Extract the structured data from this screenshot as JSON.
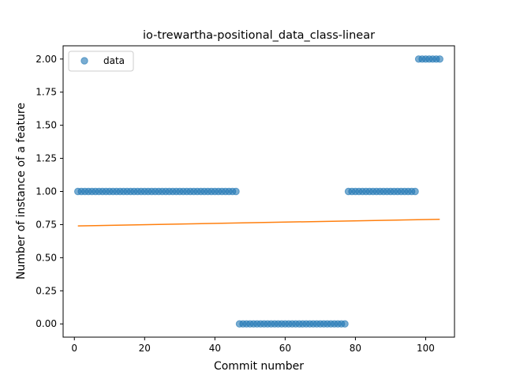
{
  "chart_data": {
    "type": "scatter",
    "title": "io-trewartha-positional_data_class-linear",
    "xlabel": "Commit number",
    "ylabel": "Number of instance of a feature",
    "xlim": [
      -3.2,
      108.2
    ],
    "ylim": [
      -0.1,
      2.1
    ],
    "xticks": [
      0,
      20,
      40,
      60,
      80,
      100
    ],
    "yticks": [
      0.0,
      0.25,
      0.5,
      0.75,
      1.0,
      1.25,
      1.5,
      1.75,
      2.0
    ],
    "ytick_labels": [
      "0.00",
      "0.25",
      "0.50",
      "0.75",
      "1.00",
      "1.25",
      "1.50",
      "1.75",
      "2.00"
    ],
    "legend": {
      "position": "upper-left",
      "entries": [
        "data"
      ]
    },
    "grid": false,
    "series": [
      {
        "name": "data",
        "kind": "scatter",
        "color": "#1f77b4",
        "alpha": 0.6,
        "points": [
          {
            "x_from": 1,
            "x_to": 46,
            "y": 1
          },
          {
            "x_from": 47,
            "x_to": 77,
            "y": 0
          },
          {
            "x_from": 78,
            "x_to": 97,
            "y": 1
          },
          {
            "x_from": 98,
            "x_to": 104,
            "y": 2
          }
        ]
      },
      {
        "kind": "line",
        "color": "#ff7f0e",
        "x": [
          1,
          104
        ],
        "y": [
          0.74,
          0.79
        ]
      }
    ]
  }
}
